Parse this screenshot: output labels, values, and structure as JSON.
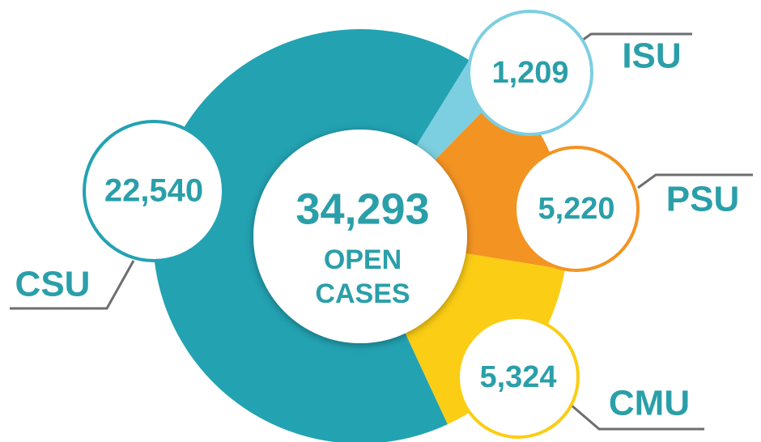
{
  "chart_data": {
    "type": "donut",
    "categories": [
      "ISU",
      "PSU",
      "CMU",
      "CSU"
    ],
    "values": [
      1209,
      5220,
      5324,
      22540
    ],
    "value_labels": [
      "1,209",
      "5,220",
      "5,324",
      "22,540"
    ],
    "colors": [
      "#7ccfe0",
      "#f39322",
      "#fbcd14",
      "#23a2b2"
    ],
    "center_label": "34,293",
    "center_caption": [
      "OPEN",
      "CASES"
    ]
  }
}
